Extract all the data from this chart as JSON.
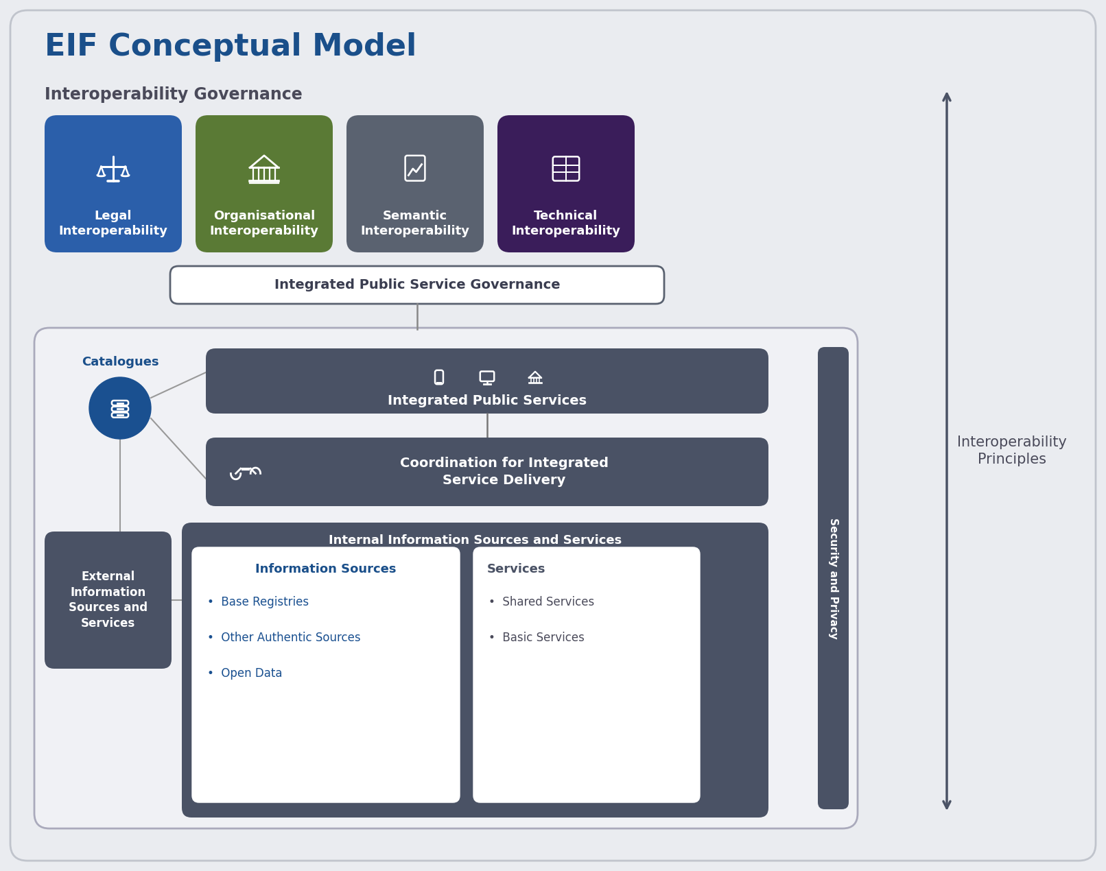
{
  "title": "EIF Conceptual Model",
  "bg_color": "#eaecf0",
  "title_color": "#1a4f8a",
  "title_fontsize": 30,
  "gov_label": "Interoperability Governance",
  "gov_label_color": "#4a4a5a",
  "interop_principles_label": "Interoperability\nPrinciples",
  "security_label": "Security and Privacy",
  "catalogues_label": "Catalogues",
  "catalogues_color": "#1a4f8a",
  "boxes": [
    {
      "label": "Legal\nInteroperability",
      "color": "#2b5faa"
    },
    {
      "label": "Organisational\nInteroperability",
      "color": "#5a7a35"
    },
    {
      "label": "Semantic\nInteroperability",
      "color": "#5a6270"
    },
    {
      "label": "Technical\nInteroperability",
      "color": "#3a1d5a"
    }
  ],
  "ipsg_label": "Integrated Public Service Governance",
  "ipsg_bg": "#ffffff",
  "ipsg_border": "#5a6270",
  "ips_label": "Integrated Public Services",
  "ips_bg": "#4a5265",
  "coord_label": "Coordination for Integrated\nService Delivery",
  "coord_bg": "#4a5265",
  "ext_label": "External\nInformation\nSources and\nServices",
  "ext_bg": "#4a5265",
  "internal_label": "Internal Information Sources and Services",
  "internal_bg": "#4a5265",
  "info_sources_label": "Information Sources",
  "info_sources_color": "#1a4f8a",
  "info_sources_items": [
    "Base Registries",
    "Other Authentic Sources",
    "Open Data"
  ],
  "services_label": "Services",
  "services_color": "#4a5265",
  "services_items": [
    "Shared Services",
    "Basic Services"
  ],
  "inner_box_bg": "#f0f1f5",
  "dark_box_color": "#4a5265",
  "line_color": "#888899"
}
